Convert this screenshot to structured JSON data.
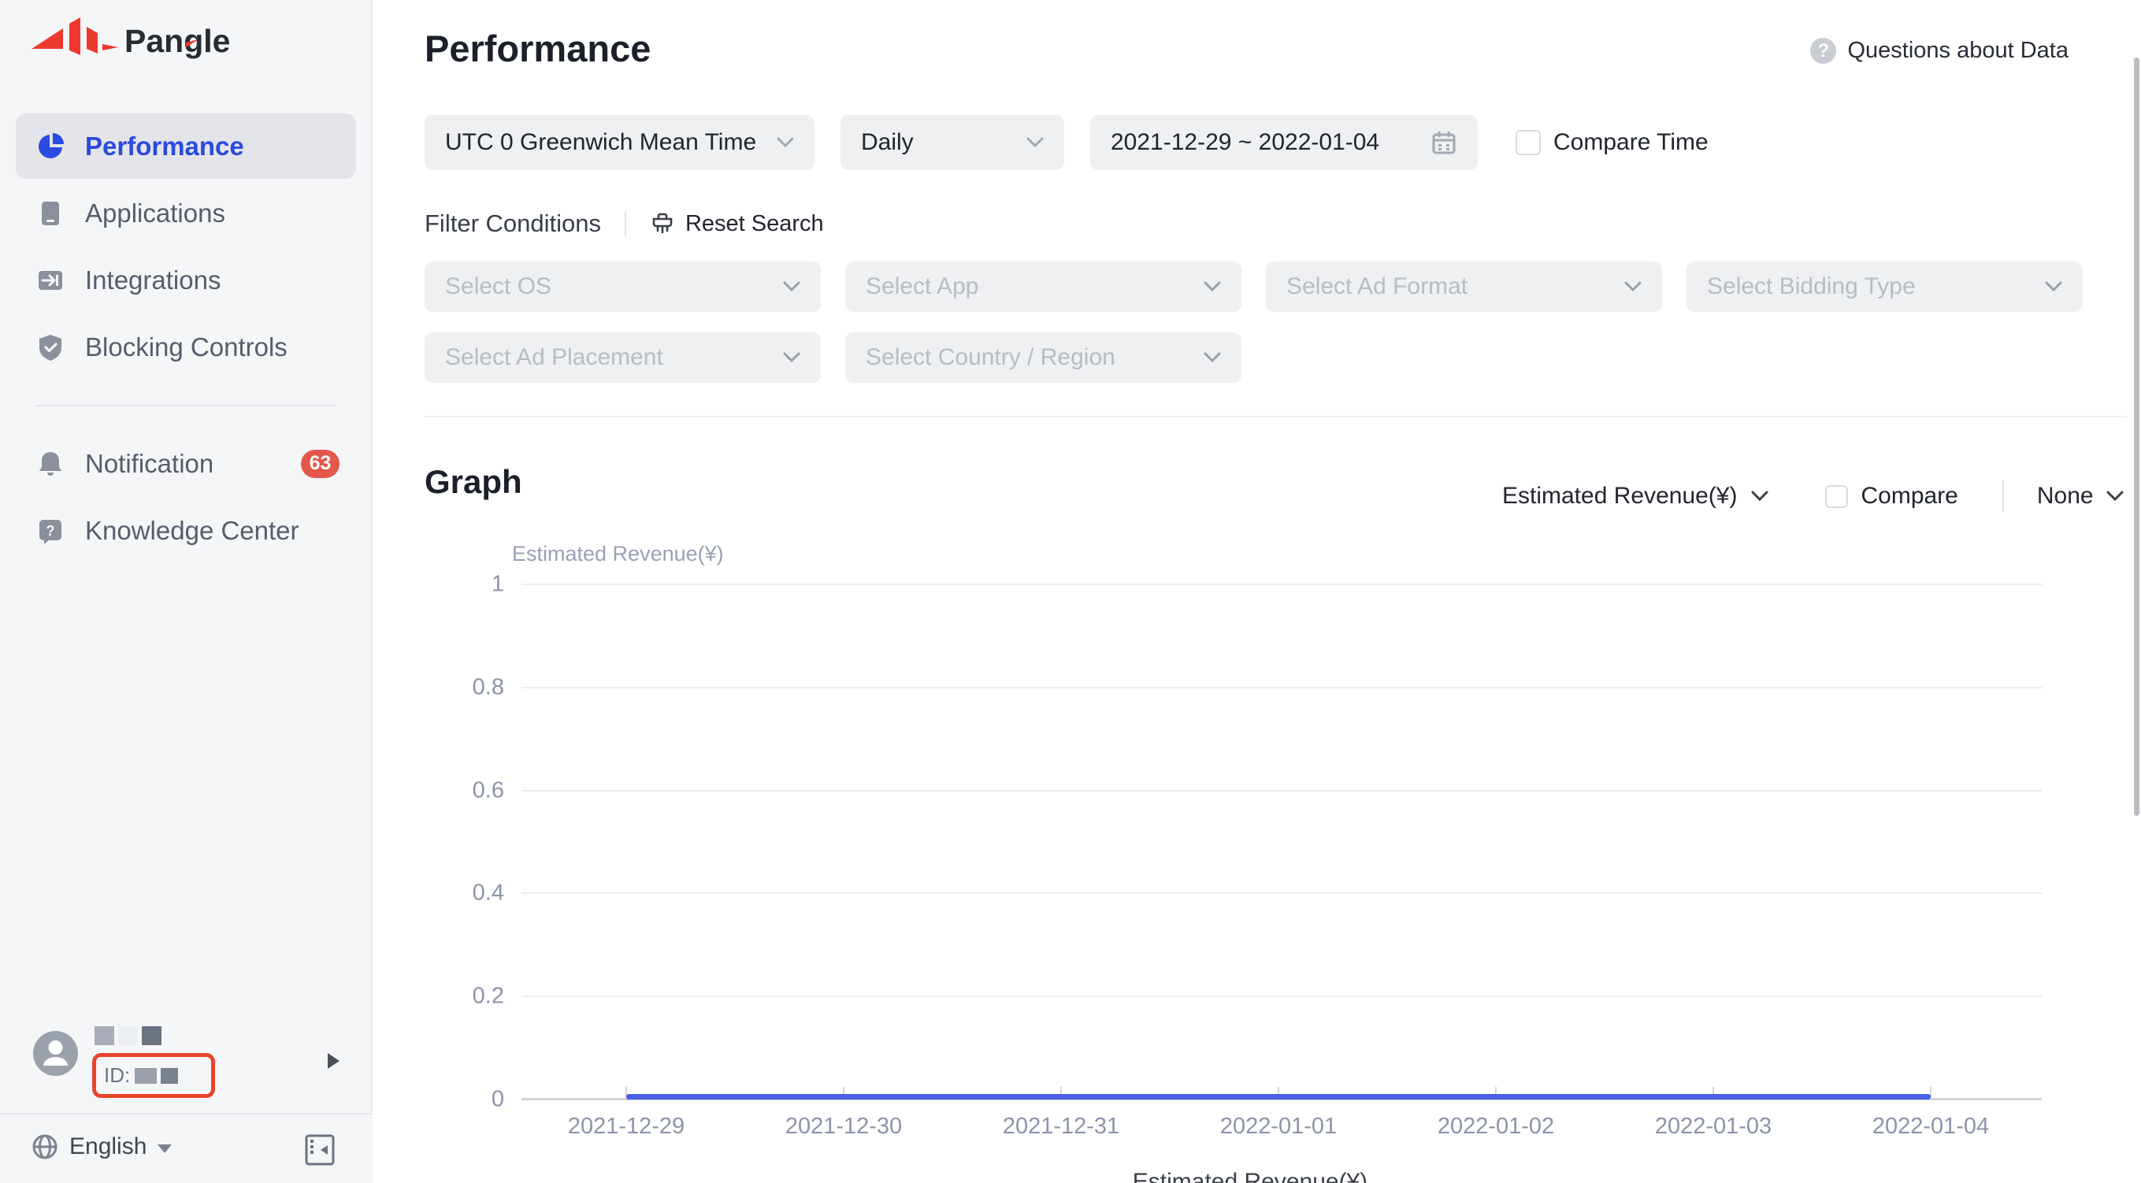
{
  "sidebar": {
    "logo_text": "Pangle",
    "menu": [
      {
        "label": "Performance",
        "icon": "pie-chart-icon",
        "active": true
      },
      {
        "label": "Applications",
        "icon": "applications-icon",
        "active": false
      },
      {
        "label": "Integrations",
        "icon": "integrations-icon",
        "active": false
      },
      {
        "label": "Blocking Controls",
        "icon": "shield-check-icon",
        "active": false
      }
    ],
    "secondary": [
      {
        "label": "Notification",
        "icon": "bell-icon",
        "badge": "63"
      },
      {
        "label": "Knowledge Center",
        "icon": "help-bubble-icon",
        "badge": null
      }
    ],
    "user": {
      "id_label": "ID:"
    },
    "language": {
      "label": "English"
    }
  },
  "header": {
    "title": "Performance",
    "help_label": "Questions about Data"
  },
  "filters": {
    "timezone": "UTC 0 Greenwich Mean Time",
    "granularity": "Daily",
    "date_range": "2021-12-29 ~ 2022-01-04",
    "compare_time_label": "Compare Time",
    "conditions_title": "Filter Conditions",
    "reset_label": "Reset Search",
    "selects_row1": [
      "Select OS",
      "Select App",
      "Select Ad Format",
      "Select Bidding Type"
    ],
    "selects_row2": [
      "Select Ad Placement",
      "Select Country / Region"
    ]
  },
  "graph": {
    "title": "Graph",
    "metric": "Estimated Revenue(¥)",
    "compare_label": "Compare",
    "dimension": "None"
  },
  "chart_data": {
    "type": "line",
    "x": [
      "2021-12-29",
      "2021-12-30",
      "2021-12-31",
      "2022-01-01",
      "2022-01-02",
      "2022-01-03",
      "2022-01-04"
    ],
    "series": [
      {
        "name": "Estimated Revenue(¥)",
        "values": [
          0,
          0,
          0,
          0,
          0,
          0,
          0
        ],
        "color": "#4a61e4"
      }
    ],
    "axis_name": "Estimated Revenue(¥)",
    "legend": "Estimated Revenue(¥)",
    "ylim": [
      0,
      1
    ],
    "yticks": [
      0,
      0.2,
      0.4,
      0.6,
      0.8,
      1
    ],
    "grid": true,
    "legend_position": "bottom"
  },
  "colors": {
    "accent_blue": "#2b4ae0",
    "line_blue": "#4a61e4",
    "badge_red": "#e4574b",
    "logo_red": "#ee392e",
    "annotation_red": "#e8432c"
  }
}
